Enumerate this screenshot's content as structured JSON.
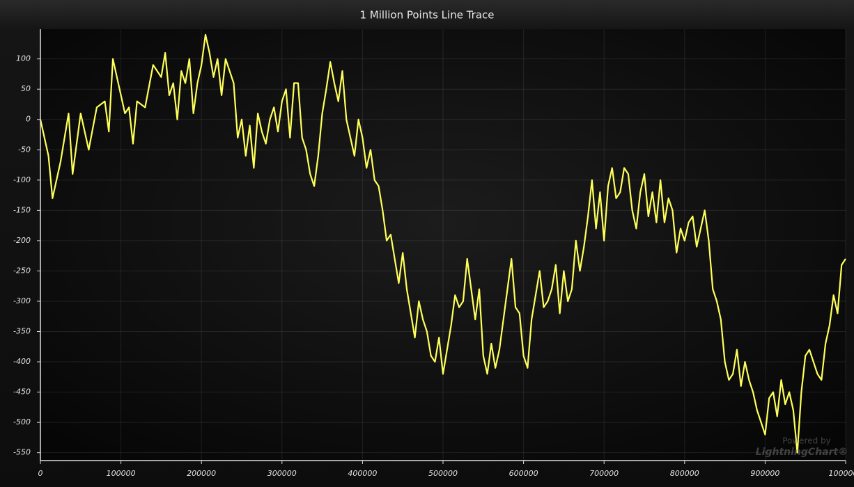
{
  "chart_data": {
    "type": "line",
    "title": "1 Million Points Line Trace",
    "watermark": [
      "Powered by",
      "LightningChart®"
    ],
    "xlim": [
      0,
      1000000
    ],
    "ylim": [
      -563,
      149
    ],
    "xticks": [
      0,
      100000,
      200000,
      300000,
      400000,
      500000,
      600000,
      700000,
      800000,
      900000,
      1000000
    ],
    "yticks": [
      -550,
      -500,
      -450,
      -400,
      -350,
      -300,
      -250,
      -200,
      -150,
      -100,
      -50,
      0,
      50,
      100
    ],
    "grid": true,
    "x": [
      0,
      10000,
      15000,
      25000,
      35000,
      40000,
      50000,
      60000,
      70000,
      80000,
      85000,
      90000,
      100000,
      105000,
      110000,
      115000,
      120000,
      130000,
      140000,
      150000,
      155000,
      160000,
      165000,
      170000,
      175000,
      180000,
      185000,
      190000,
      195000,
      200000,
      205000,
      210000,
      215000,
      220000,
      225000,
      230000,
      240000,
      245000,
      250000,
      255000,
      260000,
      265000,
      270000,
      275000,
      280000,
      285000,
      290000,
      295000,
      300000,
      305000,
      310000,
      315000,
      320000,
      325000,
      330000,
      335000,
      340000,
      345000,
      350000,
      355000,
      360000,
      365000,
      370000,
      375000,
      380000,
      385000,
      390000,
      395000,
      400000,
      405000,
      410000,
      415000,
      420000,
      425000,
      430000,
      435000,
      440000,
      445000,
      450000,
      455000,
      460000,
      465000,
      470000,
      475000,
      480000,
      485000,
      490000,
      495000,
      500000,
      505000,
      510000,
      515000,
      520000,
      525000,
      530000,
      535000,
      540000,
      545000,
      550000,
      555000,
      560000,
      565000,
      570000,
      575000,
      580000,
      585000,
      590000,
      595000,
      600000,
      605000,
      610000,
      615000,
      620000,
      625000,
      630000,
      635000,
      640000,
      645000,
      650000,
      655000,
      660000,
      665000,
      670000,
      675000,
      680000,
      685000,
      690000,
      695000,
      700000,
      705000,
      710000,
      715000,
      720000,
      725000,
      730000,
      735000,
      740000,
      745000,
      750000,
      755000,
      760000,
      765000,
      770000,
      775000,
      780000,
      785000,
      790000,
      795000,
      800000,
      805000,
      810000,
      815000,
      820000,
      825000,
      830000,
      835000,
      840000,
      845000,
      850000,
      855000,
      860000,
      865000,
      870000,
      875000,
      880000,
      885000,
      890000,
      895000,
      900000,
      905000,
      910000,
      915000,
      920000,
      925000,
      930000,
      935000,
      940000,
      945000,
      950000,
      955000,
      960000,
      965000,
      970000,
      975000,
      980000,
      985000,
      990000,
      995000,
      1000000
    ],
    "series": [
      {
        "name": "Line Trace",
        "color": "#ffff5a",
        "values": [
          0,
          -60,
          -130,
          -70,
          10,
          -90,
          10,
          -50,
          20,
          30,
          -20,
          100,
          40,
          10,
          20,
          -40,
          30,
          20,
          90,
          70,
          110,
          40,
          60,
          0,
          80,
          60,
          100,
          10,
          60,
          90,
          140,
          110,
          70,
          100,
          40,
          100,
          60,
          -30,
          0,
          -60,
          -10,
          -80,
          10,
          -20,
          -40,
          0,
          20,
          -20,
          30,
          50,
          -30,
          60,
          60,
          -30,
          -50,
          -90,
          -110,
          -60,
          10,
          50,
          95,
          60,
          30,
          80,
          0,
          -30,
          -60,
          0,
          -30,
          -80,
          -50,
          -100,
          -110,
          -150,
          -200,
          -190,
          -230,
          -270,
          -220,
          -280,
          -320,
          -360,
          -300,
          -330,
          -350,
          -390,
          -400,
          -360,
          -420,
          -380,
          -340,
          -290,
          -310,
          -300,
          -230,
          -280,
          -330,
          -280,
          -390,
          -420,
          -370,
          -410,
          -380,
          -330,
          -280,
          -230,
          -310,
          -320,
          -390,
          -410,
          -330,
          -290,
          -250,
          -310,
          -300,
          -280,
          -240,
          -320,
          -250,
          -300,
          -280,
          -200,
          -250,
          -210,
          -160,
          -100,
          -180,
          -120,
          -200,
          -110,
          -80,
          -130,
          -120,
          -80,
          -90,
          -150,
          -180,
          -120,
          -90,
          -160,
          -120,
          -170,
          -100,
          -170,
          -130,
          -150,
          -220,
          -180,
          -200,
          -170,
          -160,
          -210,
          -180,
          -150,
          -200,
          -280,
          -300,
          -330,
          -400,
          -430,
          -420,
          -380,
          -440,
          -400,
          -430,
          -450,
          -480,
          -500,
          -520,
          -460,
          -450,
          -490,
          -430,
          -470,
          -450,
          -480,
          -550,
          -450,
          -390,
          -380,
          -400,
          -420,
          -430,
          -370,
          -340,
          -290,
          -320,
          -240,
          -230
        ]
      }
    ]
  }
}
